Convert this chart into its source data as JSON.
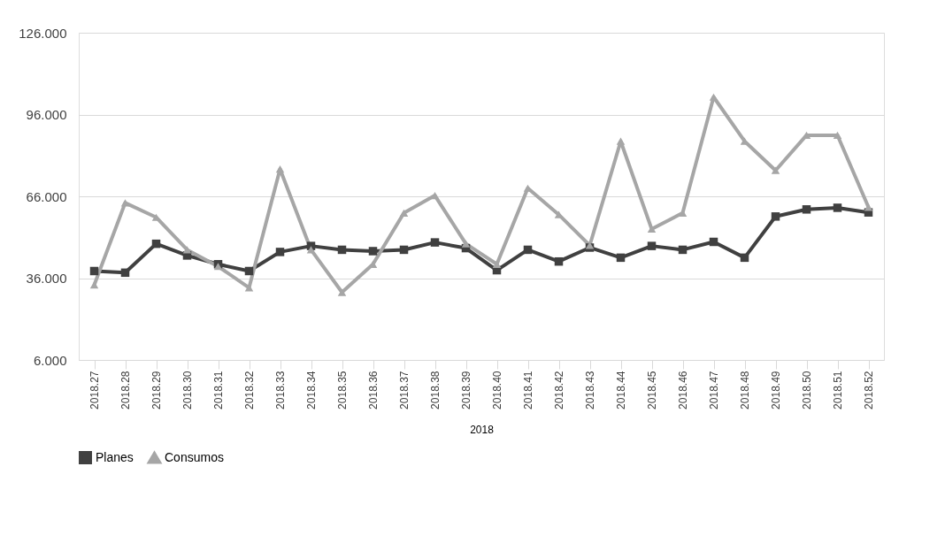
{
  "chart_data": {
    "type": "line",
    "xlabel": "2018",
    "categories": [
      "2018.27",
      "2018.28",
      "2018.29",
      "2018.30",
      "2018.31",
      "2018.32",
      "2018.33",
      "2018.34",
      "2018.35",
      "2018.36",
      "2018.37",
      "2018.38",
      "2018.39",
      "2018.40",
      "2018.41",
      "2018.42",
      "2018.43",
      "2018.44",
      "2018.45",
      "2018.46",
      "2018.47",
      "2018.48",
      "2018.49",
      "2018.50",
      "2018.51",
      "2018.52"
    ],
    "series": [
      {
        "name": "Planes",
        "color": "#404040",
        "marker": "square",
        "values": [
          38.6,
          38.0,
          48.6,
          44.3,
          41.1,
          38.6,
          45.6,
          47.8,
          46.4,
          45.9,
          46.4,
          49.1,
          47.0,
          38.9,
          46.4,
          42.1,
          47.2,
          43.5,
          47.8,
          46.4,
          49.3,
          43.5,
          58.6,
          61.2,
          61.8,
          60.1
        ]
      },
      {
        "name": "Consumos",
        "color": "#a6a6a6",
        "marker": "triangle",
        "values": [
          33.5,
          63.6,
          58.3,
          46.4,
          40.3,
          32.5,
          76.0,
          46.4,
          30.8,
          41.1,
          59.9,
          66.3,
          48.6,
          41.1,
          69.0,
          59.3,
          48.0,
          86.2,
          54.0,
          59.9,
          102.4,
          86.2,
          75.5,
          88.4,
          88.4,
          62.0
        ]
      }
    ],
    "ylim": [
      6,
      126
    ],
    "yticks": [
      {
        "value": 6,
        "label": "6.000"
      },
      {
        "value": 36,
        "label": "36.000"
      },
      {
        "value": 66,
        "label": "66.000"
      },
      {
        "value": 96,
        "label": "96.000"
      },
      {
        "value": 126,
        "label": "126.000"
      }
    ],
    "grid": "y",
    "legend": "bottom",
    "line_style": "solid"
  }
}
